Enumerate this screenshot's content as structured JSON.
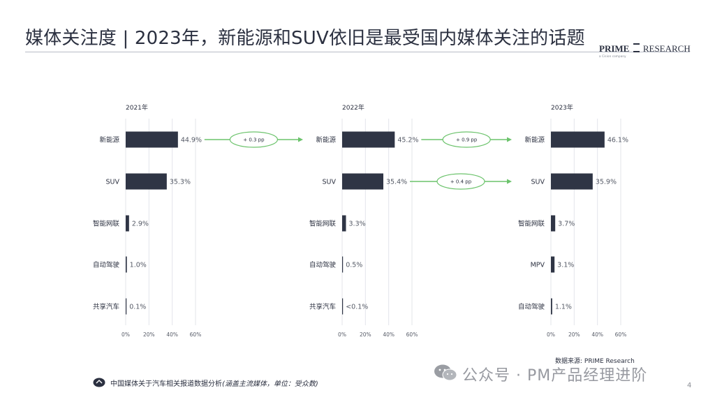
{
  "title": "媒体关注度 | 2023年，新能源和SUV依旧是最受国内媒体关注的话题",
  "brand": {
    "name": "PRIME",
    "name2": "RESEARCH",
    "sub": "a Cision company"
  },
  "colors": {
    "bar": "#2f3545",
    "accent_green": "#6cc36c",
    "grid": "#e3e5ea"
  },
  "chart_data": [
    {
      "type": "bar",
      "orientation": "horizontal",
      "title": "2021年",
      "categories": [
        "新能源",
        "SUV",
        "智能网联",
        "自动驾驶",
        "共享汽车"
      ],
      "values": [
        44.9,
        35.3,
        2.9,
        1.0,
        0.1
      ],
      "labels": [
        "44.9%",
        "35.3%",
        "2.9%",
        "1.0%",
        "0.1%"
      ],
      "xlim": [
        0,
        60
      ],
      "ticks": [
        "0%",
        "20%",
        "40%",
        "60%"
      ],
      "grid": true
    },
    {
      "type": "bar",
      "orientation": "horizontal",
      "title": "2022年",
      "categories": [
        "新能源",
        "SUV",
        "智能网联",
        "自动驾驶",
        "共享汽车"
      ],
      "values": [
        45.2,
        35.4,
        3.3,
        0.5,
        0.1
      ],
      "labels": [
        "45.2%",
        "35.4%",
        "3.3%",
        "0.5%",
        "<0.1%"
      ],
      "xlim": [
        0,
        60
      ],
      "ticks": [
        "0%",
        "20%",
        "40%",
        "60%"
      ],
      "grid": true
    },
    {
      "type": "bar",
      "orientation": "horizontal",
      "title": "2023年",
      "categories": [
        "新能源",
        "SUV",
        "智能网联",
        "MPV",
        "自动驾驶"
      ],
      "values": [
        46.1,
        35.9,
        3.7,
        3.1,
        1.1
      ],
      "labels": [
        "46.1%",
        "35.9%",
        "3.7%",
        "3.1%",
        "1.1%"
      ],
      "xlim": [
        0,
        60
      ],
      "ticks": [
        "0%",
        "20%",
        "40%",
        "60%"
      ],
      "grid": true
    }
  ],
  "changes": [
    {
      "from": 0,
      "to": 1,
      "row": 0,
      "label": "+ 0.3 pp"
    },
    {
      "from": 1,
      "to": 2,
      "row": 0,
      "label": "+ 0.9 pp"
    },
    {
      "from": 1,
      "to": 2,
      "row": 1,
      "label": "+ 0.4 pp"
    }
  ],
  "source": "数据来源: PRIME Research",
  "footnote": {
    "main": "中国媒体关于汽车相关报道数据分析",
    "note": "(涵盖主流媒体，单位：受众数)"
  },
  "watermark": "公众号 · PM产品经理进阶",
  "page_number": "4"
}
